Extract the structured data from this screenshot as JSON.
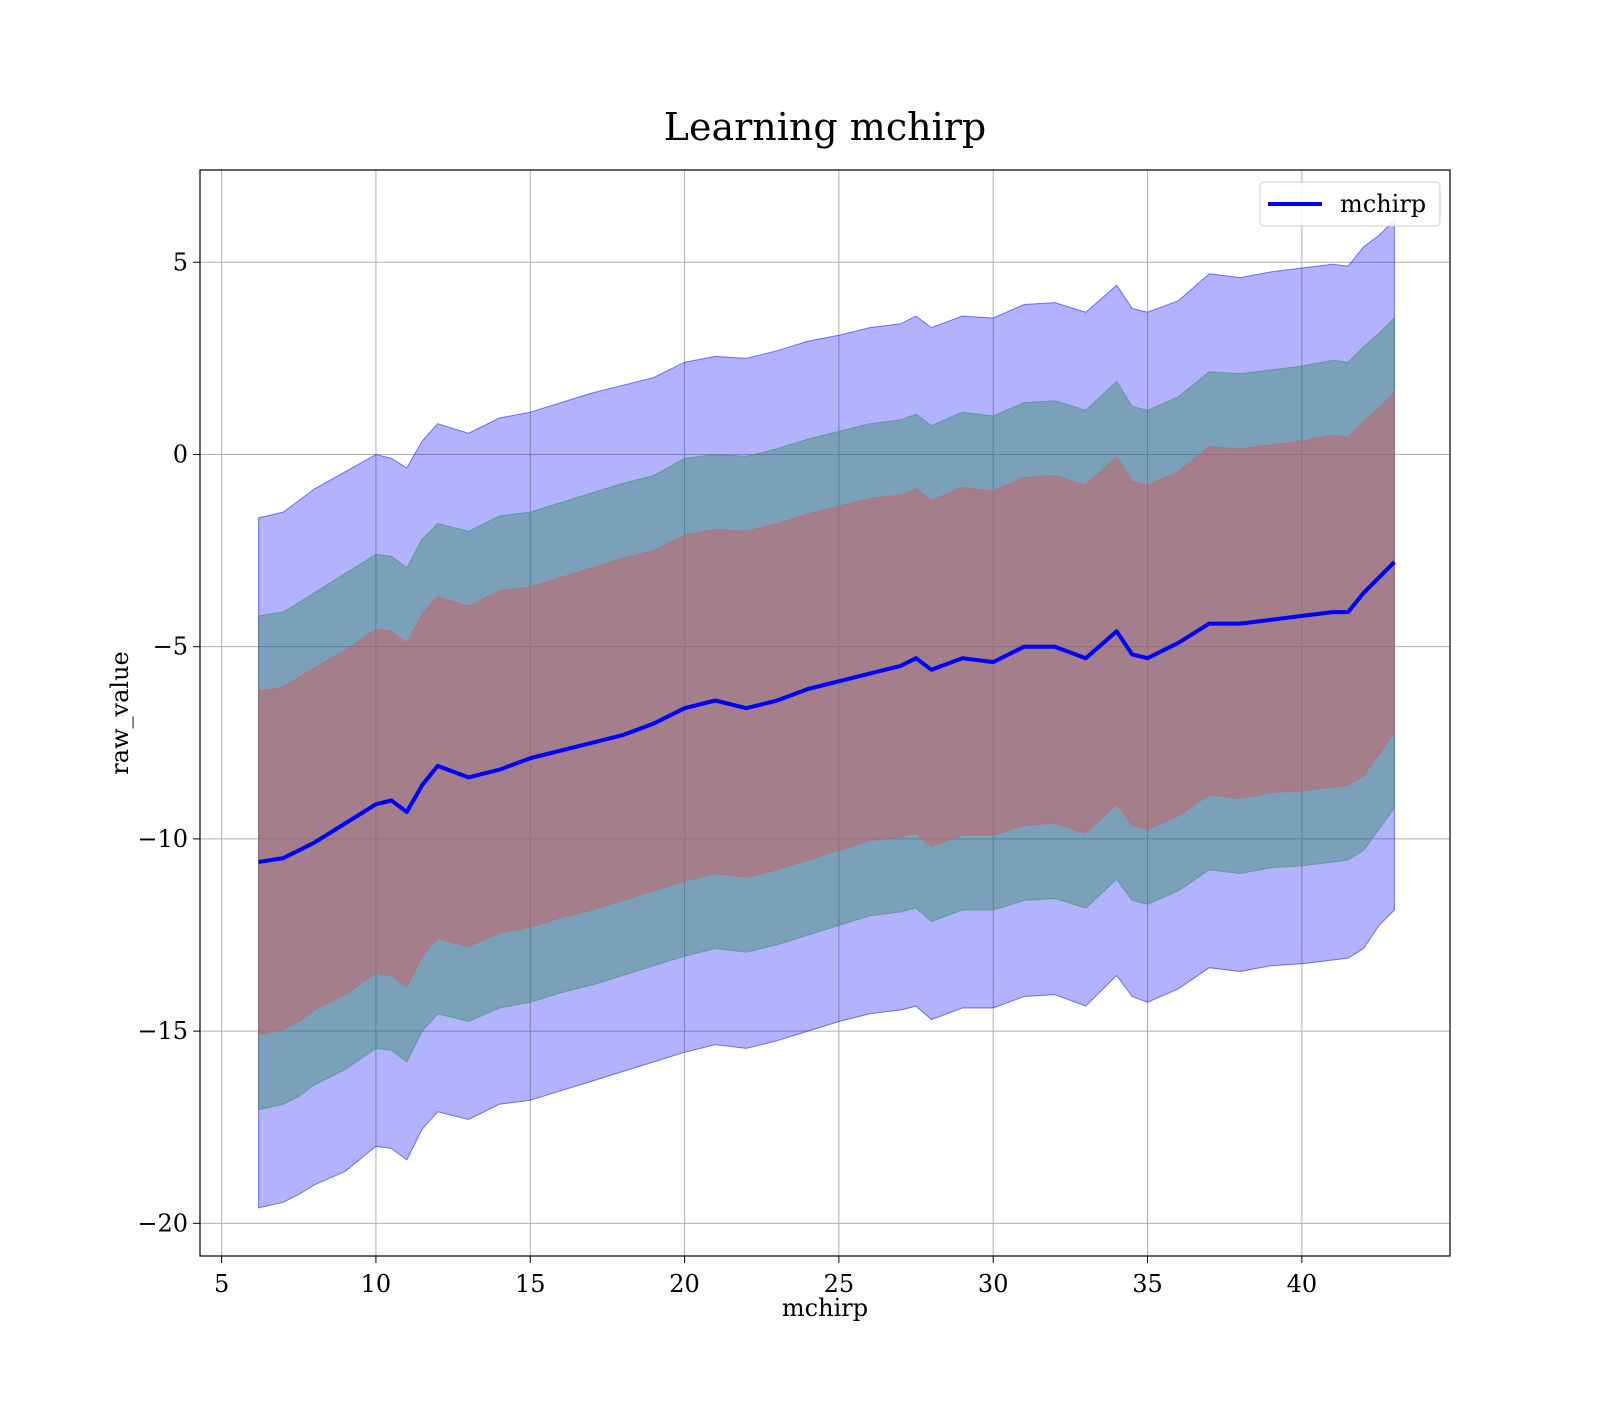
{
  "chart_data": {
    "type": "area",
    "title": "Learning mchirp",
    "xlabel": "mchirp",
    "ylabel": "raw_value",
    "xlim": [
      4.3,
      44.8
    ],
    "ylim": [
      -20.85,
      7.4
    ],
    "xticks": [
      5,
      10,
      15,
      20,
      25,
      30,
      35,
      40
    ],
    "yticks": [
      5,
      0,
      -5,
      -10,
      -15,
      -20
    ],
    "xtick_labels": [
      "5",
      "10",
      "15",
      "20",
      "25",
      "30",
      "35",
      "40"
    ],
    "ytick_labels": [
      "5",
      "0",
      "−5",
      "−10",
      "−15",
      "−20"
    ],
    "grid": true,
    "legend": {
      "position": "top-right",
      "entries": [
        "mchirp"
      ]
    },
    "colors": {
      "line": "#0000ff",
      "band_outer": "#0000ff",
      "band_middle": "#2e8b57",
      "band_inner": "#cd5c5c"
    },
    "x": [
      6.2,
      7.0,
      7.5,
      8.0,
      9.0,
      10.0,
      10.5,
      11.0,
      11.5,
      12.0,
      13.0,
      14.0,
      15.0,
      16.0,
      17.0,
      18.0,
      19.0,
      20.0,
      21.0,
      22.0,
      23.0,
      24.0,
      25.0,
      26.0,
      27.0,
      27.5,
      28.0,
      29.0,
      30.0,
      31.0,
      32.0,
      33.0,
      34.0,
      34.5,
      35.0,
      36.0,
      37.0,
      38.0,
      39.0,
      40.0,
      41.0,
      41.5,
      42.0,
      42.5,
      43.0
    ],
    "series": [
      {
        "name": "mchirp",
        "values": [
          -10.6,
          -10.5,
          -10.3,
          -10.1,
          -9.6,
          -9.1,
          -9.0,
          -9.3,
          -8.6,
          -8.1,
          -8.4,
          -8.2,
          -7.9,
          -7.7,
          -7.5,
          -7.3,
          -7.0,
          -6.6,
          -6.4,
          -6.6,
          -6.4,
          -6.1,
          -5.9,
          -5.7,
          -5.5,
          -5.3,
          -5.6,
          -5.3,
          -5.4,
          -5.0,
          -5.0,
          -5.3,
          -4.6,
          -5.2,
          -5.3,
          -4.9,
          -4.4,
          -4.4,
          -4.3,
          -4.2,
          -4.1,
          -4.1,
          -3.6,
          -3.2,
          -2.8
        ]
      }
    ],
    "bands": [
      {
        "name": "outer",
        "upper": [
          -1.65,
          -1.5,
          -1.2,
          -0.9,
          -0.45,
          0.0,
          -0.1,
          -0.35,
          0.35,
          0.8,
          0.55,
          0.95,
          1.1,
          1.35,
          1.6,
          1.8,
          2.0,
          2.4,
          2.55,
          2.5,
          2.7,
          2.95,
          3.1,
          3.3,
          3.4,
          3.6,
          3.3,
          3.6,
          3.55,
          3.9,
          3.95,
          3.7,
          4.4,
          3.8,
          3.7,
          4.0,
          4.7,
          4.6,
          4.75,
          4.85,
          4.95,
          4.9,
          5.4,
          5.7,
          6.1
        ],
        "lower": [
          -19.6,
          -19.45,
          -19.25,
          -19.0,
          -18.65,
          -18.0,
          -18.05,
          -18.35,
          -17.55,
          -17.1,
          -17.3,
          -16.9,
          -16.8,
          -16.55,
          -16.3,
          -16.05,
          -15.8,
          -15.55,
          -15.35,
          -15.45,
          -15.25,
          -15.0,
          -14.75,
          -14.55,
          -14.45,
          -14.35,
          -14.7,
          -14.4,
          -14.4,
          -14.1,
          -14.05,
          -14.35,
          -13.55,
          -14.1,
          -14.25,
          -13.9,
          -13.35,
          -13.45,
          -13.3,
          -13.25,
          -13.15,
          -13.1,
          -12.85,
          -12.25,
          -11.85
        ]
      },
      {
        "name": "middle",
        "upper": [
          -4.2,
          -4.1,
          -3.85,
          -3.6,
          -3.1,
          -2.6,
          -2.65,
          -2.95,
          -2.2,
          -1.8,
          -2.0,
          -1.6,
          -1.5,
          -1.25,
          -1.0,
          -0.75,
          -0.55,
          -0.1,
          0.0,
          -0.05,
          0.15,
          0.4,
          0.6,
          0.8,
          0.9,
          1.05,
          0.75,
          1.1,
          1.0,
          1.35,
          1.4,
          1.15,
          1.9,
          1.25,
          1.15,
          1.5,
          2.15,
          2.1,
          2.2,
          2.3,
          2.45,
          2.4,
          2.8,
          3.15,
          3.55
        ],
        "lower": [
          -17.05,
          -16.9,
          -16.7,
          -16.4,
          -16.0,
          -15.45,
          -15.5,
          -15.8,
          -15.0,
          -14.55,
          -14.75,
          -14.4,
          -14.25,
          -14.0,
          -13.8,
          -13.55,
          -13.3,
          -13.05,
          -12.85,
          -12.95,
          -12.75,
          -12.5,
          -12.25,
          -12.0,
          -11.9,
          -11.8,
          -12.15,
          -11.85,
          -11.85,
          -11.6,
          -11.55,
          -11.8,
          -11.05,
          -11.6,
          -11.7,
          -11.35,
          -10.8,
          -10.9,
          -10.75,
          -10.7,
          -10.6,
          -10.55,
          -10.3,
          -9.75,
          -9.2
        ]
      },
      {
        "name": "inner",
        "upper": [
          -6.15,
          -6.05,
          -5.8,
          -5.55,
          -5.1,
          -4.55,
          -4.6,
          -4.9,
          -4.15,
          -3.7,
          -3.95,
          -3.55,
          -3.45,
          -3.2,
          -2.95,
          -2.7,
          -2.5,
          -2.1,
          -1.95,
          -2.0,
          -1.8,
          -1.55,
          -1.35,
          -1.15,
          -1.05,
          -0.9,
          -1.2,
          -0.85,
          -0.95,
          -0.6,
          -0.55,
          -0.8,
          -0.05,
          -0.7,
          -0.8,
          -0.45,
          0.2,
          0.15,
          0.25,
          0.35,
          0.5,
          0.45,
          0.85,
          1.2,
          1.6
        ],
        "lower": [
          -15.1,
          -14.95,
          -14.75,
          -14.45,
          -14.05,
          -13.5,
          -13.55,
          -13.85,
          -13.05,
          -12.6,
          -12.8,
          -12.45,
          -12.3,
          -12.05,
          -11.85,
          -11.6,
          -11.35,
          -11.1,
          -10.9,
          -11.0,
          -10.8,
          -10.55,
          -10.3,
          -10.05,
          -9.95,
          -9.85,
          -10.2,
          -9.9,
          -9.9,
          -9.65,
          -9.6,
          -9.85,
          -9.1,
          -9.65,
          -9.75,
          -9.4,
          -8.85,
          -8.95,
          -8.8,
          -8.75,
          -8.65,
          -8.6,
          -8.35,
          -7.8,
          -7.25
        ]
      }
    ]
  }
}
